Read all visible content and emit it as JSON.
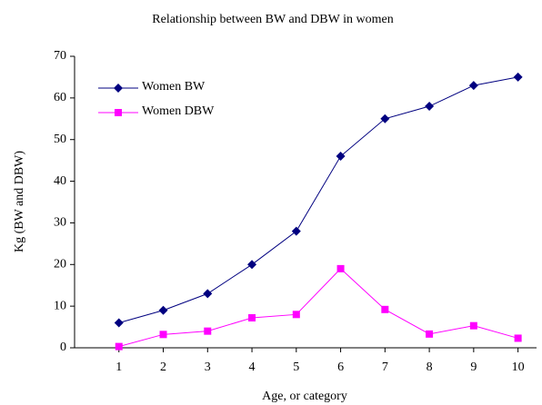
{
  "chart_data": {
    "type": "line",
    "title": "Relationship between BW and DBW in women",
    "xlabel": "Age, or category",
    "ylabel": "Kg (BW and DBW)",
    "x": [
      1,
      2,
      3,
      4,
      5,
      6,
      7,
      8,
      9,
      10
    ],
    "series": [
      {
        "name": "Women BW",
        "color": "#000080",
        "marker": "diamond",
        "values": [
          6,
          9,
          13,
          20,
          28,
          46,
          55,
          58,
          63,
          65
        ]
      },
      {
        "name": "Women DBW",
        "color": "#ff00ff",
        "marker": "square",
        "values": [
          0.3,
          3.2,
          4,
          7.2,
          8,
          19,
          9.2,
          3.3,
          5.3,
          2.3
        ]
      }
    ],
    "xlim": [
      0,
      10.5
    ],
    "xticks": [
      1,
      2,
      3,
      4,
      5,
      6,
      7,
      8,
      9,
      10
    ],
    "ylim": [
      0,
      70
    ],
    "yticks": [
      0,
      10,
      20,
      30,
      40,
      50,
      60,
      70
    ],
    "legend": "upper left"
  }
}
